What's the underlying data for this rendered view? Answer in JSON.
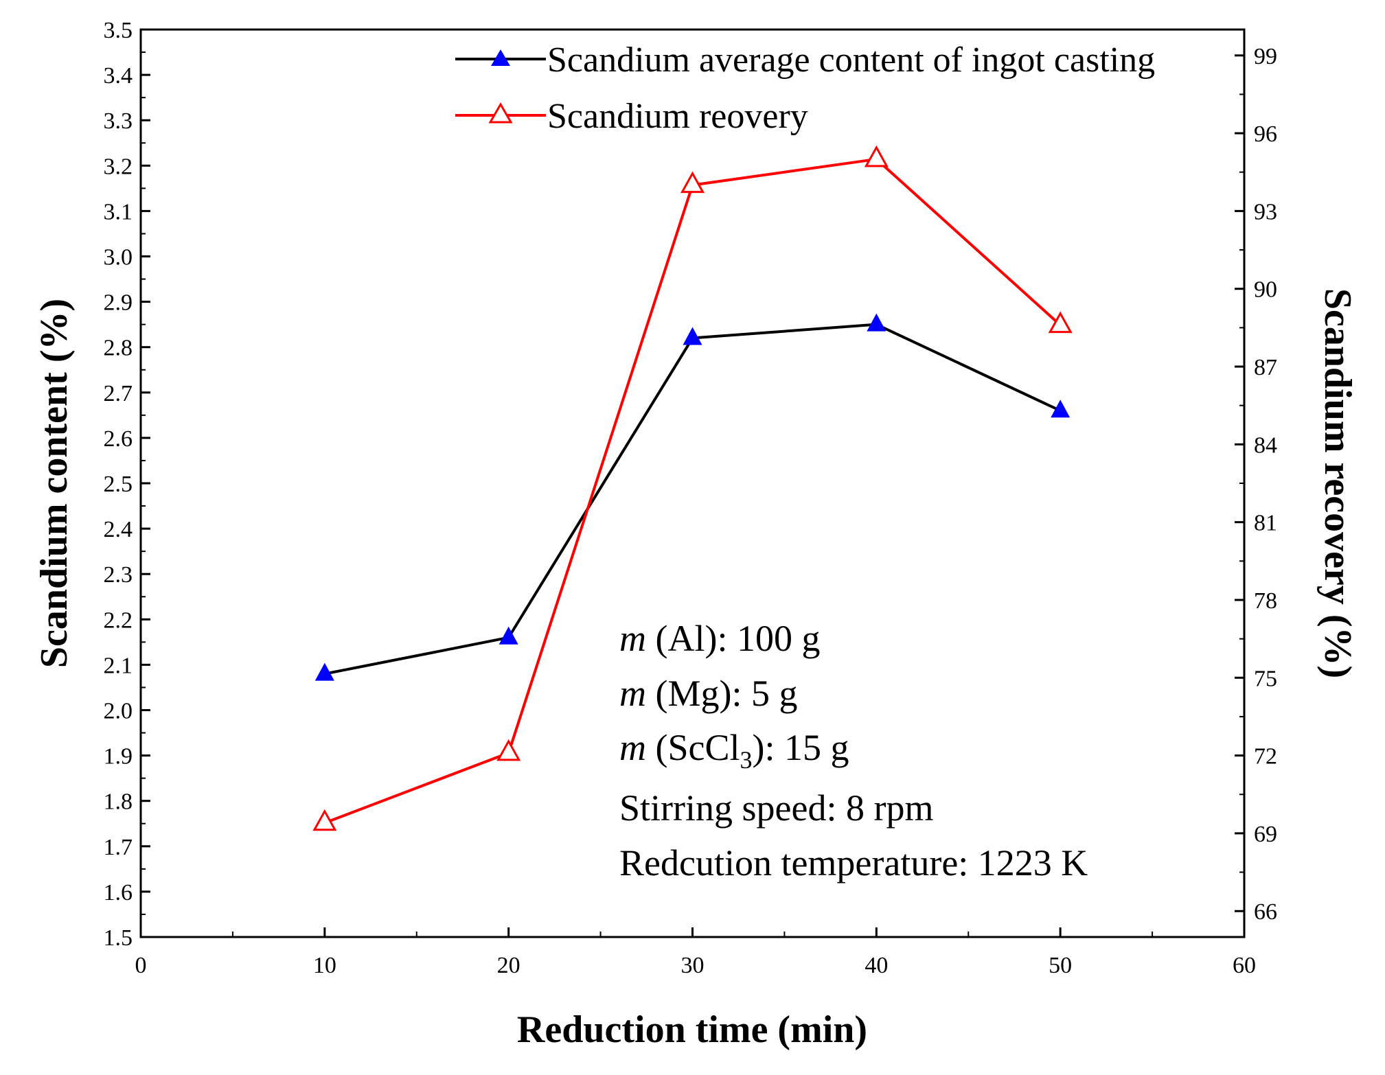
{
  "chart_data": {
    "type": "line",
    "x": [
      10,
      20,
      30,
      40,
      50
    ],
    "xlabel": "Reduction time (min)",
    "xlim": [
      0,
      60
    ],
    "xticks": [
      0,
      10,
      20,
      30,
      40,
      50,
      60
    ],
    "ylabel": "Scandium content (%)",
    "ylim": [
      1.5,
      3.5
    ],
    "yticks": [
      "1.5",
      "1.6",
      "1.7",
      "1.8",
      "1.9",
      "2.0",
      "2.1",
      "2.2",
      "2.3",
      "2.4",
      "2.5",
      "2.6",
      "2.7",
      "2.8",
      "2.9",
      "3.0",
      "3.1",
      "3.2",
      "3.3",
      "3.4",
      "3.5"
    ],
    "y2label": "Scandium recovery (%)",
    "y2lim": [
      65,
      100
    ],
    "y2ticks": [
      66,
      69,
      72,
      75,
      78,
      81,
      84,
      87,
      90,
      93,
      96,
      99
    ],
    "series": [
      {
        "name": "Scandium average content of ingot casting",
        "axis": "left",
        "color": "#000000",
        "marker": "filled-triangle",
        "marker_color": "#0000ff",
        "values": [
          2.08,
          2.16,
          2.82,
          2.85,
          2.66
        ]
      },
      {
        "name": "Scandium reovery",
        "axis": "right",
        "color": "#ff0000",
        "marker": "open-triangle",
        "marker_color": "#ff0000",
        "values": [
          69.4,
          72.1,
          94.0,
          95.0,
          88.6
        ]
      }
    ],
    "annotations": [
      {
        "italic": "m",
        "text": " (Al): 100 g"
      },
      {
        "italic": "m",
        "text": " (Mg): 5 g"
      },
      {
        "italic": "m",
        "text": " (ScCl",
        "sub": "3",
        "tail": "): 15 g"
      },
      {
        "text": "Stirring speed: 8 rpm"
      },
      {
        "text": "Redcution temperature: 1223 K"
      }
    ],
    "legend_position": "top-right"
  }
}
